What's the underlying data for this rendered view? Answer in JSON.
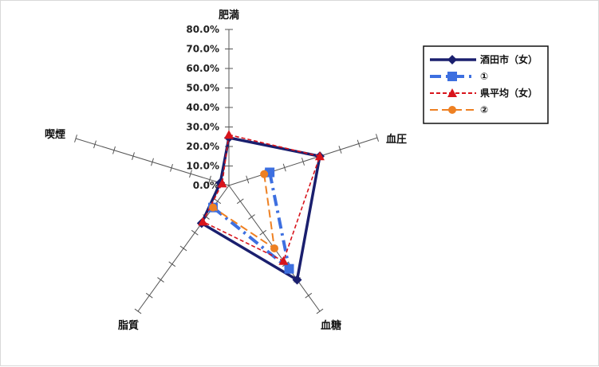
{
  "chart_data": {
    "type": "radar",
    "axes": [
      "肥満",
      "血圧",
      "血糖",
      "脂質",
      "喫煙"
    ],
    "radial_ticks": [
      "0.0%",
      "10.0%",
      "20.0%",
      "30.0%",
      "40.0%",
      "50.0%",
      "60.0%",
      "70.0%",
      "80.0%"
    ],
    "rmax": 80,
    "series": [
      {
        "name": "酒田市（女）",
        "values": [
          24.5,
          49,
          60,
          24,
          4.5
        ],
        "color": "#1a1f6e",
        "dash": "",
        "marker": "diamond",
        "width": 3.5
      },
      {
        "name": "①",
        "values": [
          null,
          22,
          53,
          14,
          null
        ],
        "color": "#3d6fe0",
        "dash": "14,6,3,6",
        "marker": "square",
        "width": 4
      },
      {
        "name": "県平均（女）",
        "values": [
          26,
          49,
          48,
          23,
          3.5
        ],
        "color": "#d8141c",
        "dash": "5,3",
        "marker": "triangle",
        "width": 1.6
      },
      {
        "name": "②",
        "values": [
          null,
          19,
          40,
          14,
          null
        ],
        "color": "#ee8022",
        "dash": "10,5",
        "marker": "circle",
        "width": 2
      }
    ],
    "legend": {
      "position": "top-right"
    },
    "grid": false
  }
}
